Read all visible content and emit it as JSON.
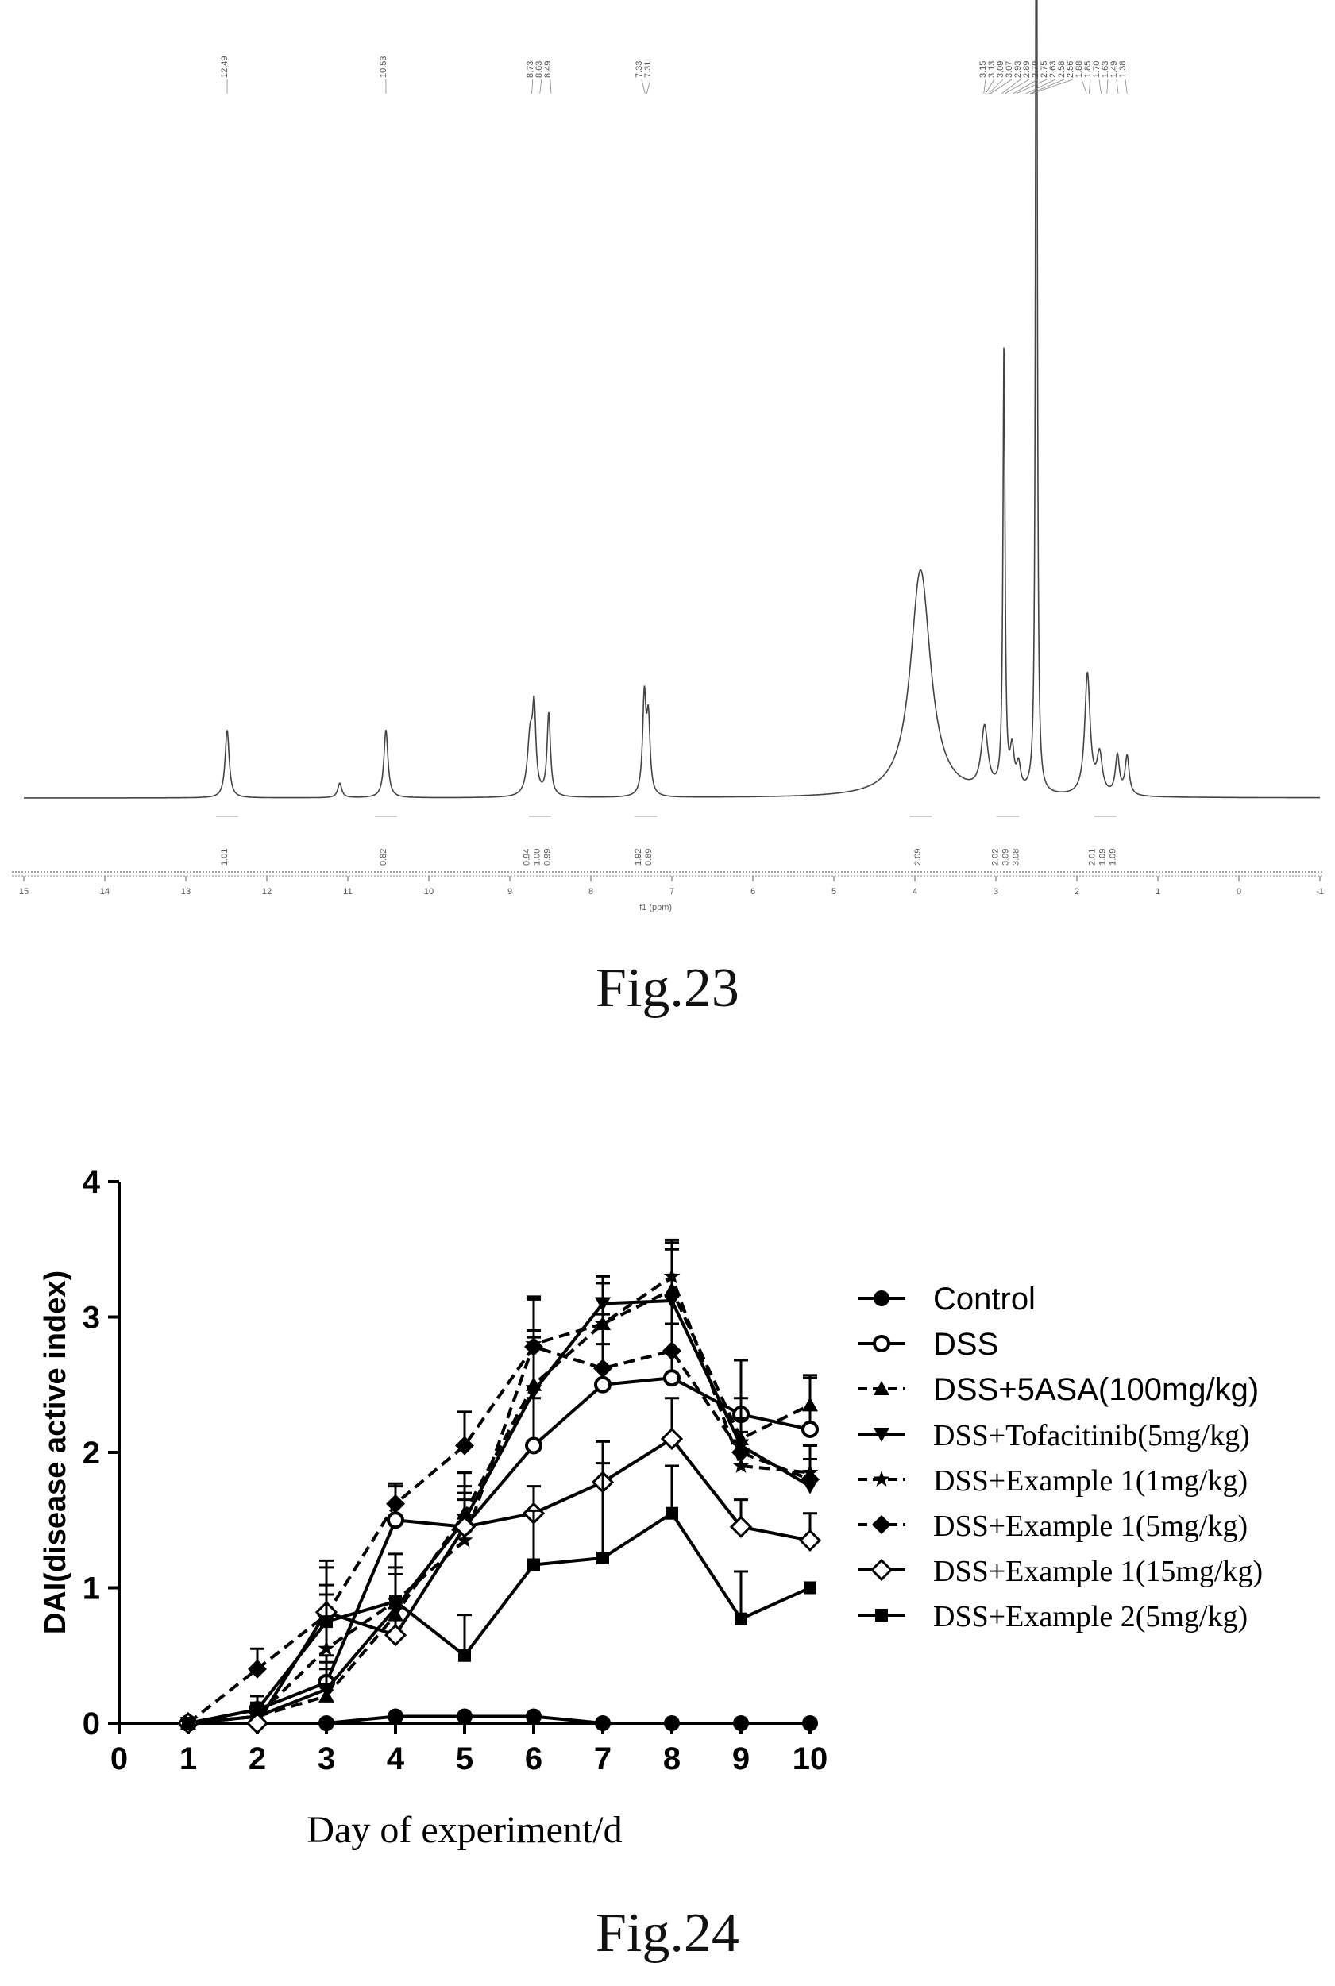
{
  "figures": {
    "fig23_caption": "Fig.23",
    "fig24_caption": "Fig.24"
  },
  "chart_data": [
    {
      "type": "line",
      "kind": "nmr-spectrum",
      "xlabel": "f1 (ppm)",
      "ylabel": "",
      "xlim": [
        15,
        -1
      ],
      "x_ticks": [
        15,
        14,
        13,
        12,
        11,
        10,
        9,
        8,
        7,
        6,
        5,
        4,
        3,
        2,
        1,
        0,
        -1
      ],
      "peak_labels": [
        {
          "group": "12.49",
          "labels": [
            "12.49"
          ]
        },
        {
          "group": "10.53",
          "labels": [
            "10.53"
          ]
        },
        {
          "group": "8.73",
          "labels": [
            "8.73",
            "8.63",
            "8.49"
          ]
        },
        {
          "group": "7.33",
          "labels": [
            "7.33",
            "7.31"
          ]
        },
        {
          "group": "3.15",
          "labels": [
            "3.15",
            "3.13",
            "3.09",
            "3.07",
            "2.93",
            "2.89",
            "2.79",
            "2.75",
            "2.63",
            "2.58",
            "2.56",
            "1.88",
            "1.85",
            "1.70",
            "1.63",
            "1.49",
            "1.38"
          ]
        }
      ],
      "peaks": [
        {
          "ppm": 12.49,
          "height": 0.14,
          "width": 0.03
        },
        {
          "ppm": 11.1,
          "height": 0.03,
          "width": 0.03
        },
        {
          "ppm": 10.53,
          "height": 0.14,
          "width": 0.03
        },
        {
          "ppm": 8.75,
          "height": 0.12,
          "width": 0.04
        },
        {
          "ppm": 8.7,
          "height": 0.16,
          "width": 0.025
        },
        {
          "ppm": 8.52,
          "height": 0.17,
          "width": 0.025
        },
        {
          "ppm": 7.34,
          "height": 0.2,
          "width": 0.025
        },
        {
          "ppm": 7.29,
          "height": 0.15,
          "width": 0.025
        },
        {
          "ppm": 3.93,
          "height": 0.47,
          "width": 0.15
        },
        {
          "ppm": 3.14,
          "height": 0.13,
          "width": 0.05
        },
        {
          "ppm": 2.9,
          "height": 0.92,
          "width": 0.015
        },
        {
          "ppm": 2.8,
          "height": 0.08,
          "width": 0.03
        },
        {
          "ppm": 2.72,
          "height": 0.05,
          "width": 0.03
        },
        {
          "ppm": 2.5,
          "height": 2.3,
          "width": 0.012
        },
        {
          "ppm": 1.87,
          "height": 0.25,
          "width": 0.04
        },
        {
          "ppm": 1.72,
          "height": 0.08,
          "width": 0.04
        },
        {
          "ppm": 1.5,
          "height": 0.08,
          "width": 0.03
        },
        {
          "ppm": 1.38,
          "height": 0.08,
          "width": 0.03
        }
      ],
      "integrals": [
        {
          "ppm": 12.49,
          "labels": [
            "1.01"
          ]
        },
        {
          "ppm": 10.53,
          "labels": [
            "0.82"
          ]
        },
        {
          "ppm": 8.63,
          "labels": [
            "0.94",
            "1.00",
            "0.99"
          ]
        },
        {
          "ppm": 7.32,
          "labels": [
            "1.92",
            "0.89"
          ]
        },
        {
          "ppm": 3.93,
          "labels": [
            "2.09"
          ]
        },
        {
          "ppm": 2.85,
          "labels": [
            "2.02",
            "3.09",
            "3.08"
          ]
        },
        {
          "ppm": 1.65,
          "labels": [
            "2.01",
            "1.09",
            "1.09"
          ]
        }
      ]
    },
    {
      "type": "line",
      "kind": "dai-line-chart",
      "title": "",
      "xlabel": "Day of experiment/d",
      "ylabel": "DAI(disease active index)",
      "xlim": [
        0,
        10
      ],
      "ylim": [
        0,
        4
      ],
      "x_ticks": [
        0,
        1,
        2,
        3,
        4,
        5,
        6,
        7,
        8,
        9,
        10
      ],
      "y_ticks": [
        0,
        1,
        2,
        3,
        4
      ],
      "x": [
        1,
        2,
        3,
        4,
        5,
        6,
        7,
        8,
        9,
        10
      ],
      "series": [
        {
          "name": "Control",
          "marker": "circle-filled",
          "dash": "solid",
          "values": [
            0,
            0,
            0,
            0.05,
            0.05,
            0.05,
            0,
            0,
            0,
            0
          ],
          "err": [
            0,
            0,
            0,
            0,
            0,
            0,
            0,
            0,
            0,
            0
          ]
        },
        {
          "name": "DSS",
          "marker": "circle-open",
          "dash": "solid",
          "values": [
            0,
            0.1,
            0.3,
            1.5,
            1.45,
            2.05,
            2.5,
            2.55,
            2.28,
            2.17
          ],
          "err": [
            0,
            0.1,
            0.2,
            0.25,
            0.3,
            0.35,
            0.3,
            0.4,
            0.4,
            0.4
          ]
        },
        {
          "name": "DSS+5ASA(100mg/kg)",
          "marker": "triangle-up",
          "dash": "dashed",
          "values": [
            0,
            0.05,
            0.2,
            0.8,
            1.55,
            2.5,
            2.95,
            3.2,
            2.1,
            2.35
          ],
          "err": [
            0,
            0.1,
            0.2,
            0.3,
            0.3,
            0.4,
            0.3,
            0.3,
            0.3,
            0.2
          ]
        },
        {
          "name": "DSS+Tofacitinib(5mg/kg)",
          "marker": "triangle-down",
          "dash": "solid",
          "values": [
            0,
            0.05,
            0.25,
            0.85,
            1.5,
            2.45,
            3.1,
            3.12,
            2.05,
            1.75
          ],
          "err": [
            0,
            0.1,
            0.2,
            0.3,
            0.35,
            0.4,
            0.2,
            0.45,
            0.2,
            0.2
          ]
        },
        {
          "name": "DSS+Example 1(1mg/kg)",
          "marker": "star",
          "dash": "dashed",
          "values": [
            0,
            0.05,
            0.55,
            0.9,
            1.35,
            2.8,
            2.95,
            3.3,
            1.9,
            1.85
          ],
          "err": [
            0,
            0.1,
            0.6,
            0.35,
            0.35,
            0.35,
            0.3,
            0.25,
            0.25,
            0.2
          ]
        },
        {
          "name": "DSS+Example 1(5mg/kg)",
          "marker": "diamond-filled",
          "dash": "dashed",
          "values": [
            0,
            0.4,
            0.8,
            1.62,
            2.05,
            2.78,
            2.62,
            2.75,
            2.0,
            1.8
          ],
          "err": [
            0,
            0.15,
            0.4,
            0.15,
            0.25,
            0.35,
            0.4,
            0.4,
            0.25,
            0.25
          ]
        },
        {
          "name": "DSS+Example 1(15mg/kg)",
          "marker": "diamond-open",
          "dash": "solid",
          "values": [
            0,
            0,
            0.82,
            0.65,
            1.45,
            1.55,
            1.78,
            2.1,
            1.45,
            1.35
          ],
          "err": [
            0,
            0,
            0.2,
            0.2,
            0.2,
            0.2,
            0.3,
            0.3,
            0.2,
            0.2
          ]
        },
        {
          "name": "DSS+Example 2(5mg/kg)",
          "marker": "square-filled",
          "dash": "solid",
          "values": [
            0,
            0.1,
            0.75,
            0.9,
            0.5,
            1.17,
            1.22,
            1.55,
            0.77,
            1.0
          ],
          "err": [
            0,
            0.1,
            0.2,
            0.2,
            0.3,
            0.4,
            0.7,
            0.35,
            0.35,
            0
          ]
        }
      ],
      "legend": "right"
    }
  ]
}
